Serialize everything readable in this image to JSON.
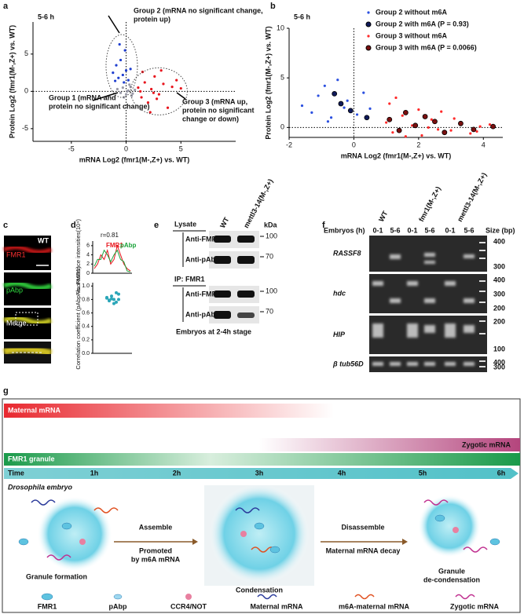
{
  "panel_a": {
    "label": "a",
    "type": "scatter",
    "subtitle": "5-6 h",
    "x_label": "mRNA Log2 (fmr1(M-,Z+) vs. WT)",
    "y_label": "Protein Log2 (fmr1(M-,Z+) vs. WT)",
    "xlim": [
      -8.5,
      10
    ],
    "ylim": [
      -6.7,
      9.3
    ],
    "xticks": [
      -5,
      0,
      5
    ],
    "yticks": [
      -5,
      0,
      5
    ],
    "annotations": [
      {
        "lines": [
          "Group 2 (mRNA no significant change,",
          "protein up)"
        ]
      },
      {
        "lines": [
          "Group 1 (mRNA and",
          "protein no significant change)"
        ]
      },
      {
        "lines": [
          "Group 3 (mRNA up,",
          "protein no significant",
          "change or down)"
        ]
      }
    ],
    "series": [
      {
        "color": "#9a9aa8",
        "x": [
          -0.8,
          -0.5,
          -0.3,
          0,
          0.2,
          0.4,
          0.6,
          0.8,
          -0.2,
          0.3,
          0.5,
          0.1
        ],
        "values": [
          0.3,
          -0.2,
          0.5,
          -0.4,
          0.1,
          0.6,
          -0.3,
          0.2,
          -0.8,
          0.9,
          -0.6,
          0
        ]
      },
      {
        "color": "#1f3fd0",
        "x": [
          -1.2,
          -0.9,
          -0.7,
          -0.5,
          -0.3,
          -0.1,
          0.2,
          0.4,
          -0.6,
          -0.2,
          0,
          -1.0
        ],
        "values": [
          2.5,
          3.5,
          1.8,
          4.2,
          2.2,
          5.5,
          1.5,
          3.0,
          6.3,
          1.2,
          2.8,
          1.4
        ]
      },
      {
        "color": "#e8141c",
        "x": [
          1.1,
          1.4,
          1.7,
          2.0,
          2.3,
          2.6,
          3.0,
          3.4,
          3.8,
          4.2,
          4.6,
          1.5,
          2.2,
          2.8,
          3.2,
          1.3,
          2.5,
          5.0
        ],
        "values": [
          0.5,
          -0.8,
          1.2,
          -1.5,
          0.3,
          2.0,
          -0.4,
          1.0,
          -2.2,
          0.6,
          1.5,
          2.6,
          -2.8,
          -1.0,
          2.8,
          0,
          -0.2,
          0.4
        ]
      }
    ]
  },
  "panel_b": {
    "label": "b",
    "type": "scatter",
    "subtitle": "5-6 h",
    "x_label": "mRNA Log2 (fmr1(M-,Z+) vs. WT)",
    "y_label": "Protein Log2 (fmr1(M-,Z+) vs. WT)",
    "xlim": [
      -2,
      4.6
    ],
    "ylim": [
      -1,
      10
    ],
    "xticks": [
      -2,
      0,
      2,
      4
    ],
    "yticks": [
      0,
      5,
      10
    ],
    "series": [
      {
        "name": "Group 2 without m6A",
        "color": "#2b50e0",
        "x": [
          -1.6,
          -1.3,
          -1.1,
          -0.9,
          -0.7,
          -0.5,
          -0.3,
          0.1,
          0.3,
          -0.8,
          -0.2,
          0.5
        ],
        "values": [
          2.2,
          1.5,
          3.2,
          4.2,
          1.0,
          4.8,
          2.0,
          1.3,
          3.5,
          0.6,
          2.7,
          1.9
        ]
      },
      {
        "name": "Group 2 with m6A (P = 0.93)",
        "color": "#101a5a",
        "edgecolor": "#000000",
        "x": [
          -0.6,
          -0.4,
          -0.1,
          0.4
        ],
        "values": [
          3.4,
          2.4,
          1.7,
          1.0
        ]
      },
      {
        "name": "Group 3 without  m6A",
        "color": "#ff2a2a",
        "x": [
          1.0,
          1.2,
          1.5,
          1.8,
          2.1,
          2.4,
          2.7,
          3.0,
          3.3,
          3.6,
          3.9,
          4.2,
          1.1,
          1.6,
          2.0,
          2.6,
          3.1,
          3.8,
          1.3,
          2.3
        ],
        "values": [
          0.5,
          -0.5,
          1.2,
          0.2,
          -0.8,
          0.8,
          1.6,
          -0.3,
          0.4,
          -0.6,
          0.1,
          0.3,
          2.4,
          -0.9,
          1.8,
          -0.2,
          0.9,
          -0.4,
          3.0,
          0.0
        ]
      },
      {
        "name": "Group 3 with m6A (P = 0.0066)",
        "color": "#7a1010",
        "edgecolor": "#000000",
        "x": [
          1.1,
          1.4,
          1.9,
          2.2,
          2.8,
          3.3,
          3.7,
          4.3,
          1.6,
          2.5
        ],
        "values": [
          0.8,
          -0.3,
          0.2,
          1.1,
          -0.5,
          0.4,
          -0.2,
          0.1,
          1.5,
          0.6
        ]
      }
    ]
  },
  "panel_c": {
    "label": "c",
    "genotype": "WT",
    "channels": [
      "FMR1",
      "pAbp",
      "Merge"
    ]
  },
  "panel_d": {
    "label": "d",
    "profile": {
      "type": "line",
      "annotation": "r=0.81",
      "y_label": "Fluorescence intensities(10⁴)",
      "ylim": [
        0,
        7
      ],
      "yticks": [
        0,
        2,
        4,
        6
      ],
      "series": [
        {
          "name": "FMR1",
          "color": "#e8141c",
          "values": [
            1,
            2,
            4,
            3,
            5,
            2,
            3,
            6,
            4,
            2,
            1,
            0.5
          ]
        },
        {
          "name": "pAbp",
          "color": "#1aa33a",
          "values": [
            1.5,
            3,
            3,
            5,
            4,
            2.5,
            4,
            5,
            3,
            2.5,
            0.5,
            0.3
          ]
        }
      ]
    },
    "correlation": {
      "type": "dot",
      "y_label": "Correlation coefficient (pAbp vs. FMR1)",
      "ylim": [
        0,
        1.05
      ],
      "yticks": [
        {
          "value": 0,
          "label": "0.0"
        },
        0.2,
        0.4,
        0.6,
        0.8,
        {
          "value": 1,
          "label": "1.0"
        }
      ],
      "color": "#2aa6b8",
      "values": [
        0.82,
        0.78,
        0.85,
        0.8,
        0.76,
        0.88,
        0.83,
        0.79,
        0.81,
        0.74,
        0.9,
        0.8
      ]
    }
  },
  "panel_e": {
    "label": "e",
    "lysate": "Lysate",
    "ip": "IP: FMR1",
    "lanes": [
      "WT",
      "mettl3-14(M-,Z+)"
    ],
    "unit": "kDa",
    "blots": [
      {
        "antibody": "Anti-FMR1",
        "size": "100"
      },
      {
        "antibody": "Anti-pAbp",
        "size": "70"
      },
      {
        "antibody": "Anti-FMR1",
        "size": "100"
      },
      {
        "antibody": "Anti-pAbp",
        "size": "70"
      }
    ],
    "caption": "Embryos at 2-4h stage"
  },
  "panel_f": {
    "label": "f",
    "genotypes": [
      "WT",
      "fmr1(M-,Z+)",
      "mettl3-14(M-,Z+)"
    ],
    "row_label": "Embryos (h)",
    "times": [
      "0-1",
      "5-6",
      "0-1",
      "5-6",
      "0-1",
      "5-6"
    ],
    "size_label": "Size (bp)",
    "gels": [
      {
        "gene": "RASSF8",
        "sizes": [
          "400",
          "300"
        ]
      },
      {
        "gene": "hdc",
        "sizes": [
          "400",
          "300",
          "200"
        ]
      },
      {
        "gene": "HIP",
        "sizes": [
          "200",
          "100"
        ]
      },
      {
        "gene": "β tub56D",
        "sizes": [
          "400",
          "300"
        ]
      }
    ]
  },
  "panel_g": {
    "label": "g",
    "maternal": "Maternal mRNA",
    "zygotic": "Zygotic mRNA",
    "granule": "FMR1 granule",
    "time": "Time",
    "hours": [
      "1h",
      "2h",
      "3h",
      "4h",
      "5h",
      "6h"
    ],
    "embryo": "Drosophila embryo",
    "step1": [
      "Assemble",
      "Promoted",
      "by m6A mRNA"
    ],
    "step2": [
      "Disassemble",
      "Maternal mRNA decay"
    ],
    "stages": [
      [
        "Granule formation"
      ],
      [
        "Condensation"
      ],
      [
        "Granule",
        "de-condensation"
      ]
    ],
    "legend": [
      "FMR1",
      "pAbp",
      "CCR4/NOT",
      "Maternal mRNA",
      "m6A-maternal mRNA",
      "Zygotic mRNA"
    ]
  }
}
